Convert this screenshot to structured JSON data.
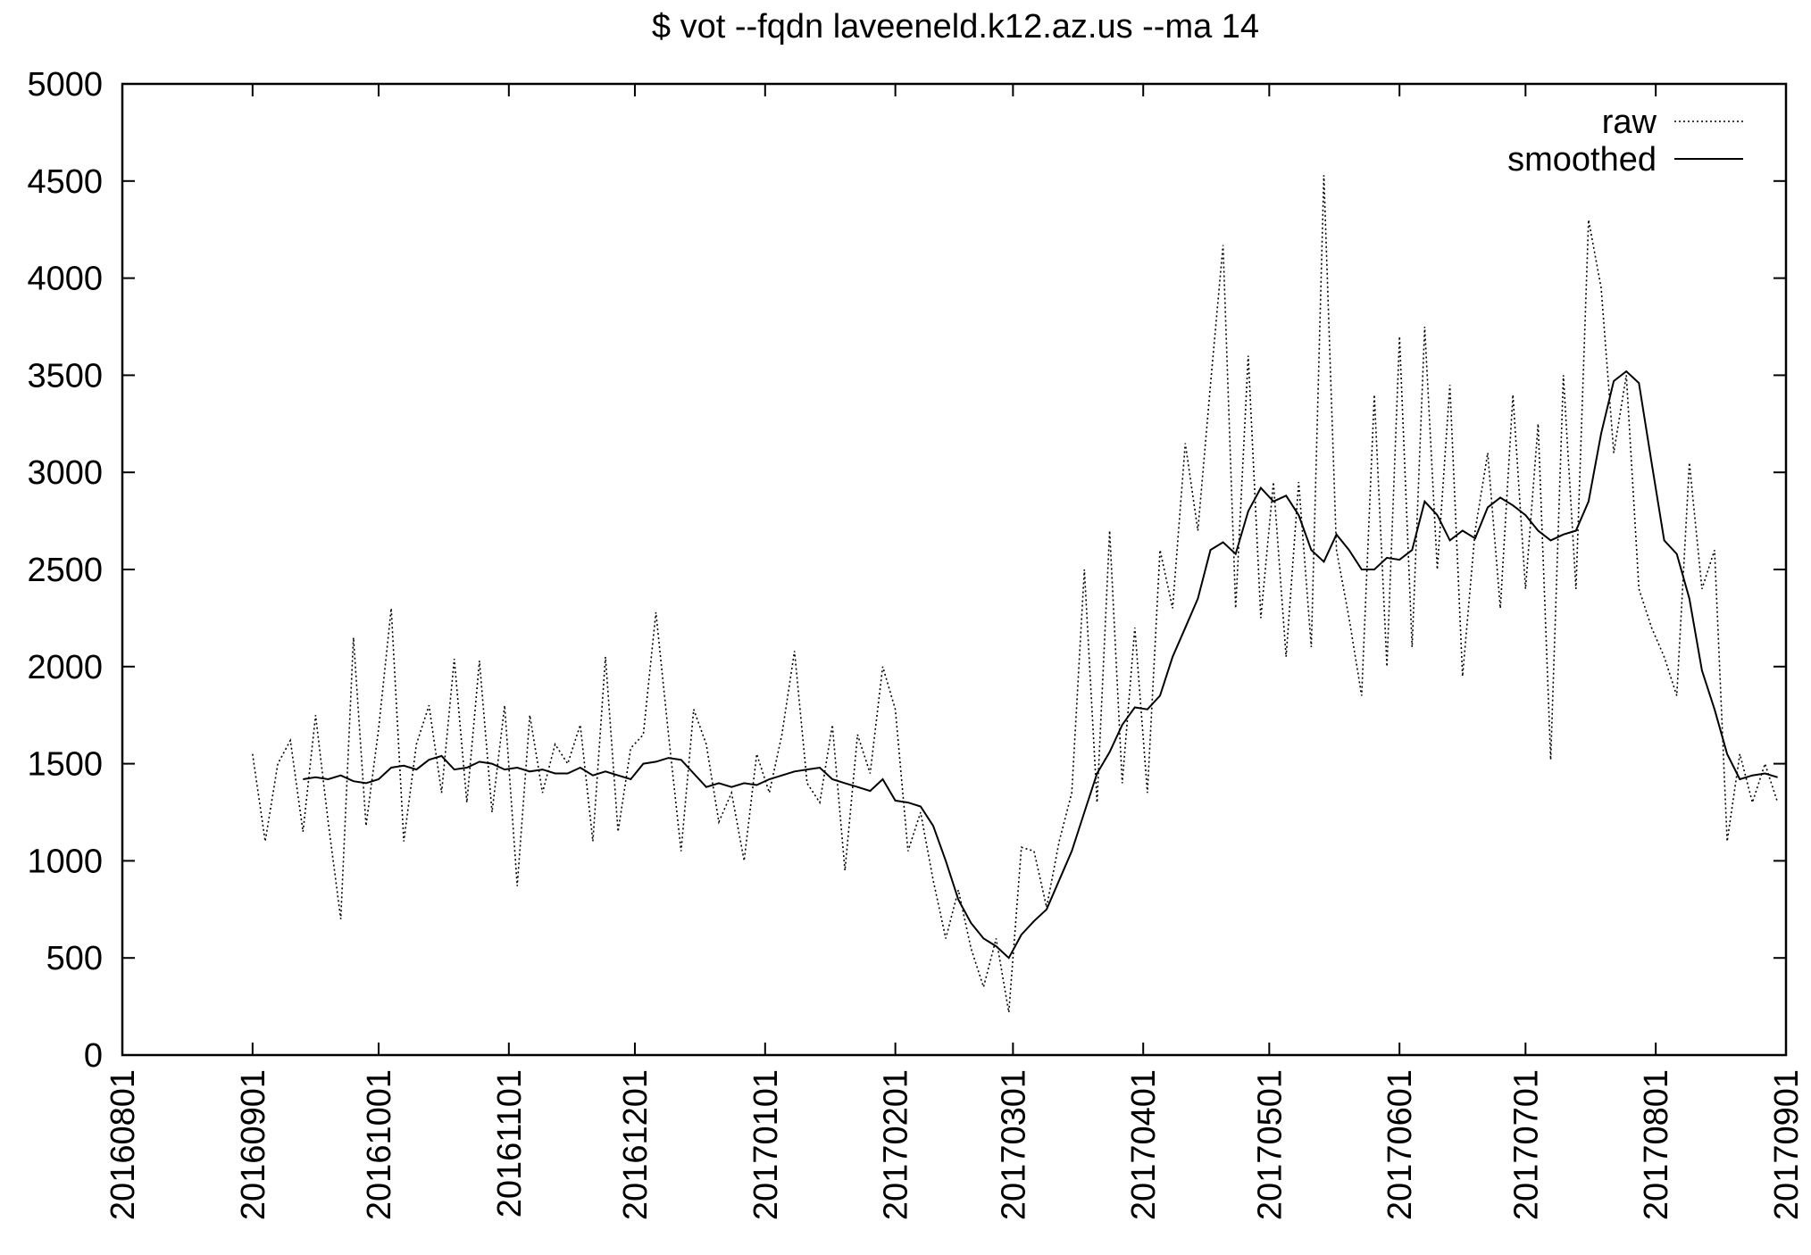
{
  "chart_data": {
    "type": "line",
    "title": "$ vot --fqdn laveeneld.k12.az.us --ma 14",
    "x": [
      "20160901",
      "20160904",
      "20160907",
      "20160910",
      "20160913",
      "20160916",
      "20160919",
      "20160922",
      "20160925",
      "20160928",
      "20161001",
      "20161004",
      "20161007",
      "20161010",
      "20161013",
      "20161016",
      "20161019",
      "20161022",
      "20161025",
      "20161028",
      "20161031",
      "20161103",
      "20161106",
      "20161109",
      "20161112",
      "20161115",
      "20161118",
      "20161121",
      "20161124",
      "20161127",
      "20161130",
      "20161203",
      "20161206",
      "20161209",
      "20161212",
      "20161215",
      "20161218",
      "20161221",
      "20161224",
      "20161227",
      "20161230",
      "20170102",
      "20170105",
      "20170108",
      "20170111",
      "20170114",
      "20170117",
      "20170120",
      "20170123",
      "20170126",
      "20170129",
      "20170201",
      "20170204",
      "20170207",
      "20170210",
      "20170213",
      "20170216",
      "20170219",
      "20170222",
      "20170225",
      "20170228",
      "20170303",
      "20170306",
      "20170309",
      "20170312",
      "20170315",
      "20170318",
      "20170321",
      "20170324",
      "20170327",
      "20170330",
      "20170402",
      "20170405",
      "20170408",
      "20170411",
      "20170414",
      "20170417",
      "20170420",
      "20170423",
      "20170426",
      "20170429",
      "20170502",
      "20170505",
      "20170508",
      "20170511",
      "20170514",
      "20170517",
      "20170520",
      "20170523",
      "20170526",
      "20170529",
      "20170601",
      "20170604",
      "20170607",
      "20170610",
      "20170613",
      "20170616",
      "20170619",
      "20170622",
      "20170625",
      "20170628",
      "20170701",
      "20170704",
      "20170707",
      "20170710",
      "20170713",
      "20170716",
      "20170719",
      "20170722",
      "20170725",
      "20170728",
      "20170731",
      "20170803",
      "20170806",
      "20170809",
      "20170812",
      "20170815",
      "20170818",
      "20170821",
      "20170824",
      "20170827",
      "20170830"
    ],
    "series": [
      {
        "name": "raw",
        "color": "#000000",
        "dash": "dotted",
        "values": [
          1550,
          1100,
          1500,
          1620,
          1150,
          1750,
          1200,
          700,
          2150,
          1180,
          1680,
          2300,
          1100,
          1600,
          1800,
          1350,
          2040,
          1300,
          2030,
          1250,
          1800,
          870,
          1750,
          1350,
          1600,
          1500,
          1700,
          1100,
          2050,
          1150,
          1580,
          1650,
          2280,
          1650,
          1050,
          1780,
          1600,
          1200,
          1350,
          1000,
          1550,
          1350,
          1650,
          2080,
          1400,
          1300,
          1700,
          950,
          1650,
          1450,
          2000,
          1780,
          1050,
          1250,
          900,
          600,
          850,
          550,
          350,
          600,
          220,
          1070,
          1050,
          760,
          1100,
          1350,
          2500,
          1300,
          2700,
          1400,
          2200,
          1350,
          2600,
          2300,
          3150,
          2700,
          3450,
          4170,
          2300,
          3600,
          2250,
          2950,
          2050,
          2950,
          2100,
          4530,
          2600,
          2250,
          1850,
          3400,
          2000,
          3700,
          2100,
          3750,
          2500,
          3450,
          1950,
          2700,
          3100,
          2300,
          3400,
          2400,
          3250,
          1520,
          3500,
          2400,
          4300,
          3950,
          3100,
          3500,
          2400,
          2200,
          2050,
          1850,
          3050,
          2400,
          2600,
          1100,
          1550,
          1300,
          1500,
          1300
        ]
      },
      {
        "name": "smoothed",
        "color": "#000000",
        "dash": "solid",
        "values": [
          null,
          null,
          null,
          null,
          1420,
          1430,
          1420,
          1440,
          1410,
          1400,
          1420,
          1480,
          1490,
          1470,
          1520,
          1540,
          1470,
          1480,
          1510,
          1500,
          1470,
          1480,
          1460,
          1470,
          1450,
          1450,
          1480,
          1440,
          1460,
          1440,
          1420,
          1500,
          1510,
          1530,
          1520,
          1450,
          1380,
          1400,
          1380,
          1400,
          1390,
          1420,
          1440,
          1460,
          1470,
          1480,
          1420,
          1400,
          1380,
          1360,
          1420,
          1310,
          1300,
          1280,
          1180,
          1000,
          800,
          680,
          600,
          560,
          500,
          620,
          690,
          750,
          900,
          1050,
          1250,
          1450,
          1560,
          1700,
          1790,
          1780,
          1850,
          2050,
          2200,
          2350,
          2600,
          2640,
          2580,
          2800,
          2920,
          2850,
          2880,
          2780,
          2600,
          2540,
          2680,
          2600,
          2500,
          2500,
          2560,
          2550,
          2600,
          2850,
          2780,
          2650,
          2700,
          2660,
          2820,
          2870,
          2830,
          2780,
          2700,
          2650,
          2680,
          2700,
          2850,
          3200,
          3470,
          3520,
          3460,
          3050,
          2650,
          2580,
          2350,
          1980,
          1780,
          1550,
          1420,
          1440,
          1450,
          1430
        ]
      }
    ],
    "xlim": [
      "20160801",
      "20170901"
    ],
    "xticks": [
      "20160801",
      "20160901",
      "20161001",
      "20161101",
      "20161201",
      "20170101",
      "20170201",
      "20170301",
      "20170401",
      "20170501",
      "20170601",
      "20170701",
      "20170801",
      "20170901"
    ],
    "ylim": [
      0,
      5000
    ],
    "yticks": [
      0,
      500,
      1000,
      1500,
      2000,
      2500,
      3000,
      3500,
      4000,
      4500,
      5000
    ],
    "grid": false,
    "legend": "top-right"
  }
}
